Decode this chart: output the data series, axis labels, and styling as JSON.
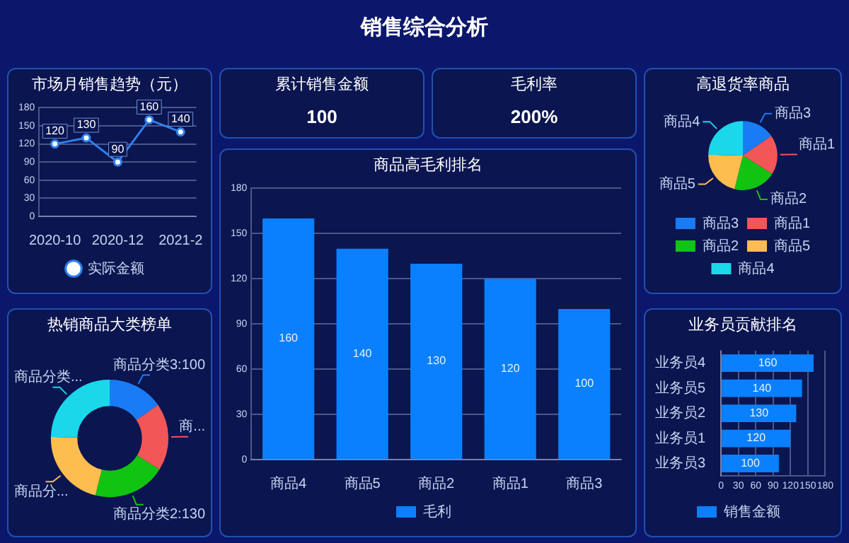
{
  "chart_data": [
    {
      "type": "other",
      "title": "销售综合分析"
    },
    {
      "type": "line",
      "title": "市场月销售趋势（元）",
      "categories": [
        "2020-10",
        null,
        "2020-12",
        null,
        "2021-2"
      ],
      "series": [
        {
          "name": "实际金额",
          "color": "#2f80ed",
          "values": [
            120,
            130,
            90,
            160,
            140
          ]
        }
      ],
      "ylim": [
        0,
        180
      ],
      "yticks": [
        0,
        30,
        60,
        90,
        120,
        150,
        180
      ],
      "grid": "y",
      "legend": "bottom",
      "marker": "circle",
      "data_labels": true
    },
    {
      "type": "other",
      "title": "累计销售金额",
      "annotations": [
        "100"
      ]
    },
    {
      "type": "other",
      "title": "毛利率",
      "annotations": [
        "200%"
      ]
    },
    {
      "type": "pie",
      "title": "高退货率商品",
      "categories": [
        "商品3",
        "商品1",
        "商品2",
        "商品5",
        "商品4"
      ],
      "values": [
        15.4,
        18.5,
        20,
        21.5,
        24.6
      ],
      "colors": [
        "#1a7cf5",
        "#f25656",
        "#12c412",
        "#fdbd4f",
        "#1ad8ea"
      ],
      "legend": "bottom"
    },
    {
      "type": "donut",
      "title": "热销商品大类榜单",
      "categories": [
        "商品分类3:100",
        "商...",
        "商品分类2:130",
        "商品分...",
        "商品分类..."
      ],
      "values": [
        15.4,
        18.5,
        20,
        21.5,
        24.6
      ],
      "colors": [
        "#1a7cf5",
        "#f25656",
        "#12c412",
        "#fdbd4f",
        "#1ad8ea"
      ]
    },
    {
      "type": "bar",
      "title": "商品高毛利排名",
      "categories": [
        "商品4",
        "商品5",
        "商品2",
        "商品1",
        "商品3"
      ],
      "series": [
        {
          "name": "毛利",
          "color": "#0a80ff",
          "values": [
            160,
            140,
            130,
            120,
            100
          ]
        }
      ],
      "ylim": [
        0,
        180
      ],
      "yticks": [
        0,
        30,
        60,
        90,
        120,
        150,
        180
      ],
      "grid": "y",
      "legend": "bottom",
      "data_labels": true
    },
    {
      "type": "bar",
      "orientation": "horizontal",
      "title": "业务员贡献排名",
      "categories": [
        "业务员4",
        "业务员5",
        "业务员2",
        "业务员1",
        "业务员3"
      ],
      "series": [
        {
          "name": "销售金额",
          "color": "#0a80ff",
          "values": [
            160,
            140,
            130,
            120,
            100
          ]
        }
      ],
      "xlim": [
        0,
        180
      ],
      "xticks": [
        0,
        30,
        60,
        90,
        120,
        150,
        180
      ],
      "grid": "x",
      "legend": "bottom",
      "data_labels": true
    }
  ]
}
